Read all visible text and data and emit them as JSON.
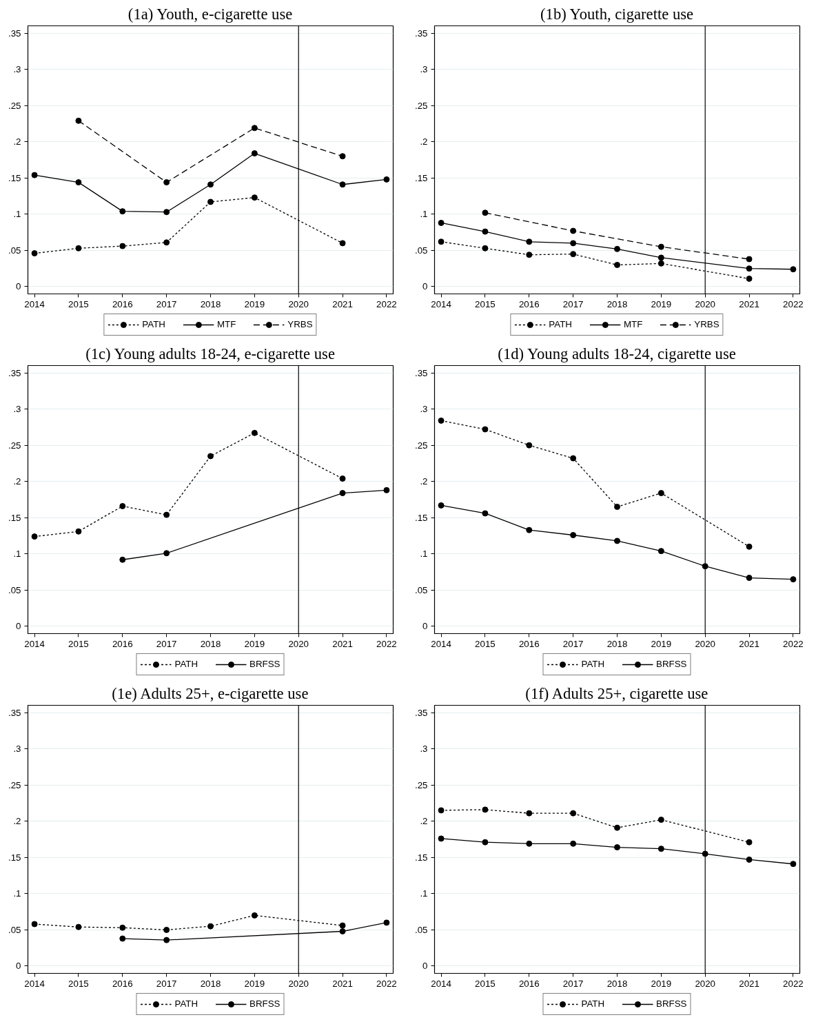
{
  "chart_data": [
    {
      "type": "line",
      "title": "(1a) Youth, e-cigarette use",
      "x": [
        2014,
        2015,
        2016,
        2017,
        2018,
        2019,
        2020,
        2021,
        2022
      ],
      "xlim": [
        2013.85,
        2022.15
      ],
      "ylim": [
        -0.01,
        0.36
      ],
      "xticks": [
        2014,
        2015,
        2016,
        2017,
        2018,
        2019,
        2020,
        2021,
        2022
      ],
      "yticks": [
        0,
        {
          "value": 0.05,
          "label": ".05"
        },
        {
          "value": 0.1,
          "label": ".1"
        },
        {
          "value": 0.15,
          "label": ".15"
        },
        {
          "value": 0.2,
          "label": ".2"
        },
        {
          "value": 0.25,
          "label": ".25"
        },
        {
          "value": 0.3,
          "label": ".3"
        },
        {
          "value": 0.35,
          "label": ".35"
        }
      ],
      "grid": "y",
      "legend": "bottom",
      "marker": "circle",
      "ref_lines": [
        {
          "axis": "x",
          "value": 2020,
          "color": "#000000"
        }
      ],
      "series": [
        {
          "name": "PATH",
          "color": "#000000",
          "line_style": "dotted",
          "values": [
            0.046,
            0.053,
            0.056,
            0.061,
            0.117,
            0.123,
            null,
            0.06,
            null
          ]
        },
        {
          "name": "MTF",
          "color": "#000000",
          "line_style": "solid",
          "values": [
            0.154,
            0.144,
            0.104,
            0.103,
            0.141,
            0.184,
            null,
            0.141,
            0.148
          ]
        },
        {
          "name": "YRBS",
          "color": "#000000",
          "line_style": "dashed",
          "values": [
            null,
            0.229,
            null,
            0.144,
            null,
            0.219,
            null,
            0.18,
            null
          ]
        }
      ]
    },
    {
      "type": "line",
      "title": "(1b) Youth, cigarette use",
      "x": [
        2014,
        2015,
        2016,
        2017,
        2018,
        2019,
        2020,
        2021,
        2022
      ],
      "xlim": [
        2013.85,
        2022.15
      ],
      "ylim": [
        -0.01,
        0.36
      ],
      "xticks": [
        2014,
        2015,
        2016,
        2017,
        2018,
        2019,
        2020,
        2021,
        2022
      ],
      "yticks": [
        0,
        {
          "value": 0.05,
          "label": ".05"
        },
        {
          "value": 0.1,
          "label": ".1"
        },
        {
          "value": 0.15,
          "label": ".15"
        },
        {
          "value": 0.2,
          "label": ".2"
        },
        {
          "value": 0.25,
          "label": ".25"
        },
        {
          "value": 0.3,
          "label": ".3"
        },
        {
          "value": 0.35,
          "label": ".35"
        }
      ],
      "grid": "y",
      "legend": "bottom",
      "marker": "circle",
      "ref_lines": [
        {
          "axis": "x",
          "value": 2020,
          "color": "#000000"
        }
      ],
      "series": [
        {
          "name": "PATH",
          "color": "#000000",
          "line_style": "dotted",
          "values": [
            0.062,
            0.053,
            0.044,
            0.045,
            0.03,
            0.032,
            null,
            0.011,
            null
          ]
        },
        {
          "name": "MTF",
          "color": "#000000",
          "line_style": "solid",
          "values": [
            0.088,
            0.076,
            0.062,
            0.06,
            0.052,
            0.04,
            null,
            0.025,
            0.024
          ]
        },
        {
          "name": "YRBS",
          "color": "#000000",
          "line_style": "dashed",
          "values": [
            null,
            0.102,
            null,
            0.077,
            null,
            0.055,
            null,
            0.038,
            null
          ]
        }
      ]
    },
    {
      "type": "line",
      "title": "(1c) Young adults 18-24, e-cigarette use",
      "x": [
        2014,
        2015,
        2016,
        2017,
        2018,
        2019,
        2020,
        2021,
        2022
      ],
      "xlim": [
        2013.85,
        2022.15
      ],
      "ylim": [
        -0.01,
        0.36
      ],
      "xticks": [
        2014,
        2015,
        2016,
        2017,
        2018,
        2019,
        2020,
        2021,
        2022
      ],
      "yticks": [
        0,
        {
          "value": 0.05,
          "label": ".05"
        },
        {
          "value": 0.1,
          "label": ".1"
        },
        {
          "value": 0.15,
          "label": ".15"
        },
        {
          "value": 0.2,
          "label": ".2"
        },
        {
          "value": 0.25,
          "label": ".25"
        },
        {
          "value": 0.3,
          "label": ".3"
        },
        {
          "value": 0.35,
          "label": ".35"
        }
      ],
      "grid": "y",
      "legend": "bottom",
      "marker": "circle",
      "ref_lines": [
        {
          "axis": "x",
          "value": 2020,
          "color": "#000000"
        }
      ],
      "series": [
        {
          "name": "PATH",
          "color": "#000000",
          "line_style": "dotted",
          "values": [
            0.124,
            0.131,
            0.166,
            0.154,
            0.235,
            0.267,
            null,
            0.204,
            null
          ]
        },
        {
          "name": "BRFSS",
          "color": "#000000",
          "line_style": "solid",
          "values": [
            null,
            null,
            0.092,
            0.101,
            null,
            null,
            null,
            0.184,
            0.188
          ]
        }
      ]
    },
    {
      "type": "line",
      "title": "(1d) Young adults 18-24, cigarette use",
      "x": [
        2014,
        2015,
        2016,
        2017,
        2018,
        2019,
        2020,
        2021,
        2022
      ],
      "xlim": [
        2013.85,
        2022.15
      ],
      "ylim": [
        -0.01,
        0.36
      ],
      "xticks": [
        2014,
        2015,
        2016,
        2017,
        2018,
        2019,
        2020,
        2021,
        2022
      ],
      "yticks": [
        0,
        {
          "value": 0.05,
          "label": ".05"
        },
        {
          "value": 0.1,
          "label": ".1"
        },
        {
          "value": 0.15,
          "label": ".15"
        },
        {
          "value": 0.2,
          "label": ".2"
        },
        {
          "value": 0.25,
          "label": ".25"
        },
        {
          "value": 0.3,
          "label": ".3"
        },
        {
          "value": 0.35,
          "label": ".35"
        }
      ],
      "grid": "y",
      "legend": "bottom",
      "marker": "circle",
      "ref_lines": [
        {
          "axis": "x",
          "value": 2020,
          "color": "#000000"
        }
      ],
      "series": [
        {
          "name": "PATH",
          "color": "#000000",
          "line_style": "dotted",
          "values": [
            0.284,
            0.272,
            0.25,
            0.232,
            0.165,
            0.184,
            null,
            0.11,
            null
          ]
        },
        {
          "name": "BRFSS",
          "color": "#000000",
          "line_style": "solid",
          "values": [
            0.167,
            0.156,
            0.133,
            0.126,
            0.118,
            0.104,
            0.083,
            0.067,
            0.065
          ]
        }
      ]
    },
    {
      "type": "line",
      "title": "(1e) Adults 25+, e-cigarette use",
      "x": [
        2014,
        2015,
        2016,
        2017,
        2018,
        2019,
        2020,
        2021,
        2022
      ],
      "xlim": [
        2013.85,
        2022.15
      ],
      "ylim": [
        -0.01,
        0.36
      ],
      "xticks": [
        2014,
        2015,
        2016,
        2017,
        2018,
        2019,
        2020,
        2021,
        2022
      ],
      "yticks": [
        0,
        {
          "value": 0.05,
          "label": ".05"
        },
        {
          "value": 0.1,
          "label": ".1"
        },
        {
          "value": 0.15,
          "label": ".15"
        },
        {
          "value": 0.2,
          "label": ".2"
        },
        {
          "value": 0.25,
          "label": ".25"
        },
        {
          "value": 0.3,
          "label": ".3"
        },
        {
          "value": 0.35,
          "label": ".35"
        }
      ],
      "grid": "y",
      "legend": "bottom",
      "marker": "circle",
      "ref_lines": [
        {
          "axis": "x",
          "value": 2020,
          "color": "#000000"
        }
      ],
      "series": [
        {
          "name": "PATH",
          "color": "#000000",
          "line_style": "dotted",
          "values": [
            0.058,
            0.054,
            0.053,
            0.05,
            0.055,
            0.07,
            null,
            0.056,
            null
          ]
        },
        {
          "name": "BRFSS",
          "color": "#000000",
          "line_style": "solid",
          "values": [
            null,
            null,
            0.038,
            0.036,
            null,
            null,
            null,
            0.048,
            0.06
          ]
        }
      ]
    },
    {
      "type": "line",
      "title": "(1f) Adults 25+, cigarette use",
      "x": [
        2014,
        2015,
        2016,
        2017,
        2018,
        2019,
        2020,
        2021,
        2022
      ],
      "xlim": [
        2013.85,
        2022.15
      ],
      "ylim": [
        -0.01,
        0.36
      ],
      "xticks": [
        2014,
        2015,
        2016,
        2017,
        2018,
        2019,
        2020,
        2021,
        2022
      ],
      "yticks": [
        0,
        {
          "value": 0.05,
          "label": ".05"
        },
        {
          "value": 0.1,
          "label": ".1"
        },
        {
          "value": 0.15,
          "label": ".15"
        },
        {
          "value": 0.2,
          "label": ".2"
        },
        {
          "value": 0.25,
          "label": ".25"
        },
        {
          "value": 0.3,
          "label": ".3"
        },
        {
          "value": 0.35,
          "label": ".35"
        }
      ],
      "grid": "y",
      "legend": "bottom",
      "marker": "circle",
      "ref_lines": [
        {
          "axis": "x",
          "value": 2020,
          "color": "#000000"
        }
      ],
      "series": [
        {
          "name": "PATH",
          "color": "#000000",
          "line_style": "dotted",
          "values": [
            0.215,
            0.216,
            0.211,
            0.211,
            0.191,
            0.202,
            null,
            0.171,
            null
          ]
        },
        {
          "name": "BRFSS",
          "color": "#000000",
          "line_style": "solid",
          "values": [
            0.176,
            0.171,
            0.169,
            0.169,
            0.164,
            0.162,
            0.155,
            0.147,
            0.141
          ]
        }
      ]
    }
  ]
}
